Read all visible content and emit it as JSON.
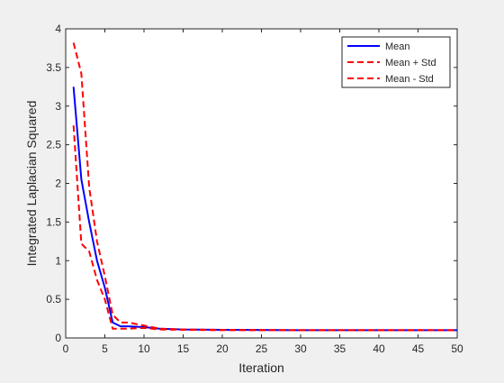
{
  "chart_data": {
    "type": "line",
    "title": "",
    "xlabel": "Iteration",
    "ylabel": "Integrated Laplacian Squared",
    "xlim": [
      0,
      50
    ],
    "ylim": [
      0,
      4
    ],
    "xticks": [
      0,
      5,
      10,
      15,
      20,
      25,
      30,
      35,
      40,
      45,
      50
    ],
    "yticks": [
      0,
      0.5,
      1,
      1.5,
      2,
      2.5,
      3,
      3.5,
      4
    ],
    "xtick_labels": [
      "0",
      "5",
      "10",
      "15",
      "20",
      "25",
      "30",
      "35",
      "40",
      "45",
      "50"
    ],
    "ytick_labels": [
      "0",
      "0.5",
      "1",
      "1.5",
      "2",
      "2.5",
      "3",
      "3.5",
      "4"
    ],
    "grid": false,
    "legend_position": "top-right",
    "series": [
      {
        "name": "Mean",
        "color": "#0000ff",
        "style": "solid",
        "x": [
          1,
          2,
          3,
          4,
          5,
          6,
          7,
          8,
          10,
          12,
          15,
          20,
          30,
          40,
          50
        ],
        "y": [
          3.25,
          2.05,
          1.5,
          1.0,
          0.65,
          0.2,
          0.15,
          0.15,
          0.14,
          0.12,
          0.11,
          0.105,
          0.1,
          0.1,
          0.1
        ]
      },
      {
        "name": "Mean + Std",
        "color": "#ff0000",
        "style": "dashed",
        "x": [
          1,
          2,
          3,
          4,
          5,
          6,
          7,
          8,
          10,
          12,
          15,
          20,
          30,
          40,
          50
        ],
        "y": [
          3.82,
          3.42,
          1.95,
          1.25,
          0.8,
          0.3,
          0.2,
          0.2,
          0.16,
          0.12,
          0.11,
          0.105,
          0.1,
          0.1,
          0.1
        ]
      },
      {
        "name": "Mean - Std",
        "color": "#ff0000",
        "style": "dashed",
        "x": [
          1,
          2,
          3,
          4,
          5,
          6,
          7,
          8,
          10,
          12,
          15,
          20,
          30,
          40,
          50
        ],
        "y": [
          2.75,
          1.22,
          1.12,
          0.75,
          0.5,
          0.12,
          0.12,
          0.12,
          0.13,
          0.11,
          0.105,
          0.1,
          0.1,
          0.1,
          0.1
        ]
      }
    ]
  }
}
